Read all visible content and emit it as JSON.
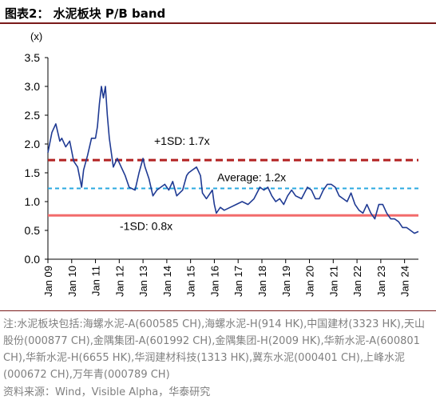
{
  "figure_title": "图表2：  水泥板块  P/B band",
  "footnote": "注:水泥板块包括:海螺水泥-A(600585 CH),海螺水泥-H(914 HK),中国建材(3323 HK),天山股份(000877 CH),金隅集团-A(601992 CH),金隅集团-H(2009 HK),华新水泥-A(600801 CH),华新水泥-H(6655 HK),华润建材科技(1313 HK),冀东水泥(000401 CH),上峰水泥(000672 CH),万年青(000789 CH)",
  "source": "资料来源：Wind，Visible Alpha，华泰研究",
  "colors": {
    "pb_line": "#1f3a93",
    "plus_1sd": "#b22222",
    "average": "#2aa9e0",
    "minus_1sd": "#f26b6b",
    "header_rule": "#7a1a1a"
  },
  "chart_data": {
    "type": "line",
    "ylabel": "(x)",
    "ylim": [
      0.0,
      3.5
    ],
    "yticks": [
      "0.0",
      "0.5",
      "1.0",
      "1.5",
      "2.0",
      "2.5",
      "3.0",
      "3.5"
    ],
    "x_range": [
      "2009-01",
      "2024-08"
    ],
    "xticks": [
      "Jan 09",
      "Jan 10",
      "Jan 11",
      "Jan 12",
      "Jan 13",
      "Jan 14",
      "Jan 15",
      "Jan 16",
      "Jan 17",
      "Jan 18",
      "Jan 19",
      "Jan 20",
      "Jan 21",
      "Jan 22",
      "Jan 23",
      "Jan 24"
    ],
    "reference_lines": [
      {
        "label": "+1SD: 1.7x",
        "value": 1.72,
        "style": "dashed"
      },
      {
        "label": "Average: 1.2x",
        "value": 1.23,
        "style": "dashed"
      },
      {
        "label": "-1SD: 0.8x",
        "value": 0.76,
        "style": "solid"
      }
    ],
    "series": [
      {
        "x": [
          "2009-01",
          "2009-03",
          "2009-05",
          "2009-07",
          "2009-08",
          "2009-10",
          "2009-12",
          "2010-02",
          "2010-04",
          "2010-06",
          "2010-07",
          "2010-09",
          "2010-11",
          "2011-01",
          "2011-02",
          "2011-03",
          "2011-04",
          "2011-05",
          "2011-06",
          "2011-07",
          "2011-08",
          "2011-10",
          "2011-12",
          "2012-02",
          "2012-04",
          "2012-06",
          "2012-09",
          "2012-11",
          "2013-01",
          "2013-02",
          "2013-04",
          "2013-06",
          "2013-08",
          "2013-10",
          "2013-12",
          "2014-02",
          "2014-04",
          "2014-06",
          "2014-09",
          "2014-11",
          "2014-12",
          "2015-02",
          "2015-04",
          "2015-06",
          "2015-07",
          "2015-09",
          "2015-12",
          "2016-01",
          "2016-02",
          "2016-04",
          "2016-06",
          "2016-09",
          "2016-12",
          "2017-03",
          "2017-06",
          "2017-09",
          "2017-12",
          "2018-02",
          "2018-04",
          "2018-06",
          "2018-08",
          "2018-10",
          "2018-12",
          "2019-02",
          "2019-04",
          "2019-06",
          "2019-09",
          "2019-12",
          "2020-02",
          "2020-04",
          "2020-06",
          "2020-08",
          "2020-10",
          "2020-12",
          "2021-02",
          "2021-04",
          "2021-06",
          "2021-08",
          "2021-10",
          "2021-12",
          "2022-02",
          "2022-04",
          "2022-06",
          "2022-08",
          "2022-10",
          "2022-12",
          "2023-02",
          "2023-04",
          "2023-06",
          "2023-08",
          "2023-10",
          "2023-12",
          "2024-02",
          "2024-04",
          "2024-06",
          "2024-08"
        ],
        "values": [
          1.85,
          2.2,
          2.35,
          2.05,
          2.1,
          1.95,
          2.05,
          1.7,
          1.6,
          1.25,
          1.55,
          1.8,
          2.1,
          2.1,
          2.3,
          2.7,
          3.0,
          2.8,
          3.0,
          2.5,
          2.1,
          1.6,
          1.75,
          1.6,
          1.45,
          1.25,
          1.2,
          1.5,
          1.75,
          1.6,
          1.4,
          1.1,
          1.2,
          1.25,
          1.3,
          1.2,
          1.35,
          1.1,
          1.2,
          1.45,
          1.5,
          1.55,
          1.6,
          1.45,
          1.15,
          1.05,
          1.2,
          0.95,
          0.8,
          0.9,
          0.85,
          0.9,
          0.95,
          1.0,
          0.95,
          1.05,
          1.25,
          1.2,
          1.25,
          1.1,
          1.0,
          1.05,
          0.95,
          1.1,
          1.2,
          1.1,
          1.05,
          1.25,
          1.2,
          1.05,
          1.05,
          1.2,
          1.3,
          1.3,
          1.25,
          1.1,
          1.05,
          1.0,
          1.15,
          0.95,
          0.85,
          0.8,
          0.95,
          0.8,
          0.7,
          0.95,
          0.95,
          0.8,
          0.7,
          0.7,
          0.65,
          0.55,
          0.55,
          0.5,
          0.45,
          0.48
        ]
      }
    ]
  }
}
